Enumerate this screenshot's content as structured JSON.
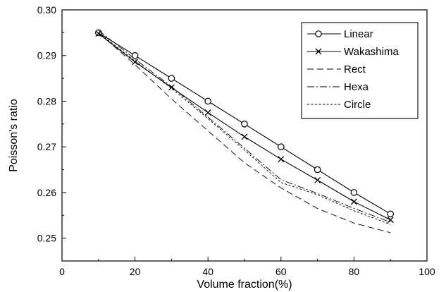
{
  "chart_data": {
    "type": "line",
    "xlabel": "Volume fraction(%)",
    "ylabel": "Poisson's ratio",
    "xlim": [
      0,
      100
    ],
    "ylim": [
      0.245,
      0.3
    ],
    "x_ticks": [
      0,
      20,
      40,
      60,
      80,
      100
    ],
    "x_tick_labels": [
      "0",
      "20",
      "40",
      "60",
      "80",
      "100"
    ],
    "y_ticks": [
      0.25,
      0.26,
      0.27,
      0.28,
      0.29,
      0.3
    ],
    "y_tick_labels": [
      "0.25",
      "0.26",
      "0.27",
      "0.28",
      "0.29",
      "0.30"
    ],
    "legend_position": "top-right",
    "grid": false,
    "x": [
      10,
      20,
      30,
      40,
      50,
      60,
      70,
      80,
      90
    ],
    "series": [
      {
        "name": "Linear",
        "marker": "circle",
        "dash": "solid",
        "values": [
          0.295,
          0.29,
          0.285,
          0.28,
          0.275,
          0.27,
          0.265,
          0.26,
          0.2553
        ]
      },
      {
        "name": "Wakashima",
        "marker": "x",
        "dash": "solid",
        "values": [
          0.2948,
          0.2886,
          0.283,
          0.2775,
          0.2722,
          0.2673,
          0.2627,
          0.258,
          0.254
        ]
      },
      {
        "name": "Rect",
        "marker": "none",
        "dash": "dashed",
        "values": [
          0.295,
          0.288,
          0.2805,
          0.2735,
          0.2665,
          0.261,
          0.2565,
          0.2533,
          0.2512
        ]
      },
      {
        "name": "Hexa",
        "marker": "none",
        "dash": "dash-dot",
        "values": [
          0.2955,
          0.2892,
          0.2832,
          0.2765,
          0.2697,
          0.2628,
          0.2598,
          0.2565,
          0.2535
        ]
      },
      {
        "name": "Circle",
        "marker": "none",
        "dash": "dotted",
        "values": [
          0.295,
          0.2888,
          0.2828,
          0.2762,
          0.2693,
          0.2622,
          0.2595,
          0.256,
          0.253
        ]
      }
    ]
  }
}
